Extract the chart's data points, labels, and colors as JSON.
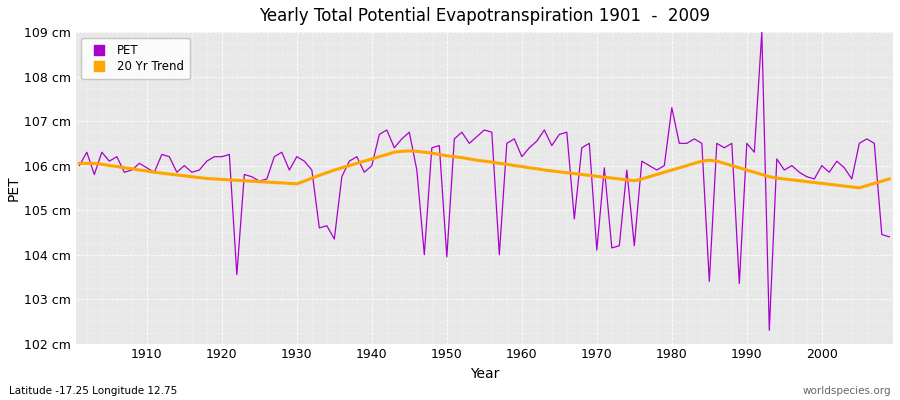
{
  "title": "Yearly Total Potential Evapotranspiration 1901  -  2009",
  "xlabel": "Year",
  "ylabel": "PET",
  "lat_lon_label": "Latitude -17.25 Longitude 12.75",
  "watermark": "worldspecies.org",
  "pet_color": "#AA00CC",
  "trend_color": "#FFA500",
  "bg_color": "#E8E8E8",
  "ylim": [
    102,
    109
  ],
  "yticks": [
    102,
    103,
    104,
    105,
    106,
    107,
    108,
    109
  ],
  "ytick_labels": [
    "102 cm",
    "103 cm",
    "104 cm",
    "105 cm",
    "106 cm",
    "107 cm",
    "108 cm",
    "109 cm"
  ],
  "xtick_years": [
    1910,
    1920,
    1930,
    1940,
    1950,
    1960,
    1970,
    1980,
    1990,
    2000
  ],
  "years": [
    1901,
    1902,
    1903,
    1904,
    1905,
    1906,
    1907,
    1908,
    1909,
    1910,
    1911,
    1912,
    1913,
    1914,
    1915,
    1916,
    1917,
    1918,
    1919,
    1920,
    1921,
    1922,
    1923,
    1924,
    1925,
    1926,
    1927,
    1928,
    1929,
    1930,
    1931,
    1932,
    1933,
    1934,
    1935,
    1936,
    1937,
    1938,
    1939,
    1940,
    1941,
    1942,
    1943,
    1944,
    1945,
    1946,
    1947,
    1948,
    1949,
    1950,
    1951,
    1952,
    1953,
    1954,
    1955,
    1956,
    1957,
    1958,
    1959,
    1960,
    1961,
    1962,
    1963,
    1964,
    1965,
    1966,
    1967,
    1968,
    1969,
    1970,
    1971,
    1972,
    1973,
    1974,
    1975,
    1976,
    1977,
    1978,
    1979,
    1980,
    1981,
    1982,
    1983,
    1984,
    1985,
    1986,
    1987,
    1988,
    1989,
    1990,
    1991,
    1992,
    1993,
    1994,
    1995,
    1996,
    1997,
    1998,
    1999,
    2000,
    2001,
    2002,
    2003,
    2004,
    2005,
    2006,
    2007,
    2008,
    2009
  ],
  "pet_values": [
    106.0,
    106.3,
    105.8,
    106.3,
    106.1,
    106.2,
    105.85,
    105.9,
    106.05,
    105.95,
    105.85,
    106.25,
    106.2,
    105.85,
    106.0,
    105.85,
    105.9,
    106.1,
    106.2,
    106.2,
    106.25,
    103.55,
    105.8,
    105.75,
    105.65,
    105.7,
    106.2,
    106.3,
    105.9,
    106.2,
    106.1,
    105.9,
    104.6,
    104.65,
    104.35,
    105.75,
    106.1,
    106.2,
    105.85,
    106.0,
    106.7,
    106.8,
    106.4,
    106.6,
    106.75,
    105.9,
    104.0,
    106.4,
    106.45,
    103.95,
    106.6,
    106.75,
    106.5,
    106.65,
    106.8,
    106.75,
    104.0,
    106.5,
    106.6,
    106.2,
    106.4,
    106.55,
    106.8,
    106.45,
    106.7,
    106.75,
    104.8,
    106.4,
    106.5,
    104.1,
    105.95,
    104.15,
    104.2,
    105.9,
    104.2,
    106.1,
    106.0,
    105.9,
    106.0,
    107.3,
    106.5,
    106.5,
    106.6,
    106.5,
    103.4,
    106.5,
    106.4,
    106.5,
    103.35,
    106.5,
    106.3,
    109.0,
    102.3,
    106.15,
    105.9,
    106.0,
    105.85,
    105.75,
    105.7,
    106.0,
    105.85,
    106.1,
    105.95,
    105.7,
    106.5,
    106.6,
    106.5,
    104.45,
    104.4
  ],
  "trend_values": [
    106.05,
    106.05,
    106.05,
    106.03,
    106.0,
    105.98,
    105.95,
    105.93,
    105.9,
    105.88,
    105.85,
    105.83,
    105.81,
    105.79,
    105.77,
    105.75,
    105.73,
    105.71,
    105.7,
    105.69,
    105.68,
    105.67,
    105.66,
    105.65,
    105.64,
    105.63,
    105.62,
    105.61,
    105.6,
    105.59,
    105.65,
    105.72,
    105.78,
    105.84,
    105.9,
    105.95,
    106.0,
    106.05,
    106.1,
    106.15,
    106.2,
    106.25,
    106.3,
    106.32,
    106.33,
    106.32,
    106.3,
    106.28,
    106.25,
    106.22,
    106.2,
    106.18,
    106.15,
    106.12,
    106.1,
    106.08,
    106.05,
    106.03,
    106.0,
    105.98,
    105.95,
    105.93,
    105.9,
    105.88,
    105.86,
    105.84,
    105.82,
    105.8,
    105.78,
    105.76,
    105.74,
    105.72,
    105.7,
    105.68,
    105.66,
    105.7,
    105.75,
    105.8,
    105.85,
    105.9,
    105.95,
    106.0,
    106.05,
    106.1,
    106.12,
    106.1,
    106.05,
    106.0,
    105.95,
    105.9,
    105.85,
    105.8,
    105.75,
    105.72,
    105.7,
    105.68,
    105.66,
    105.64,
    105.62,
    105.6,
    105.58,
    105.56,
    105.54,
    105.52,
    105.5,
    105.55,
    105.6,
    105.65,
    105.7
  ]
}
